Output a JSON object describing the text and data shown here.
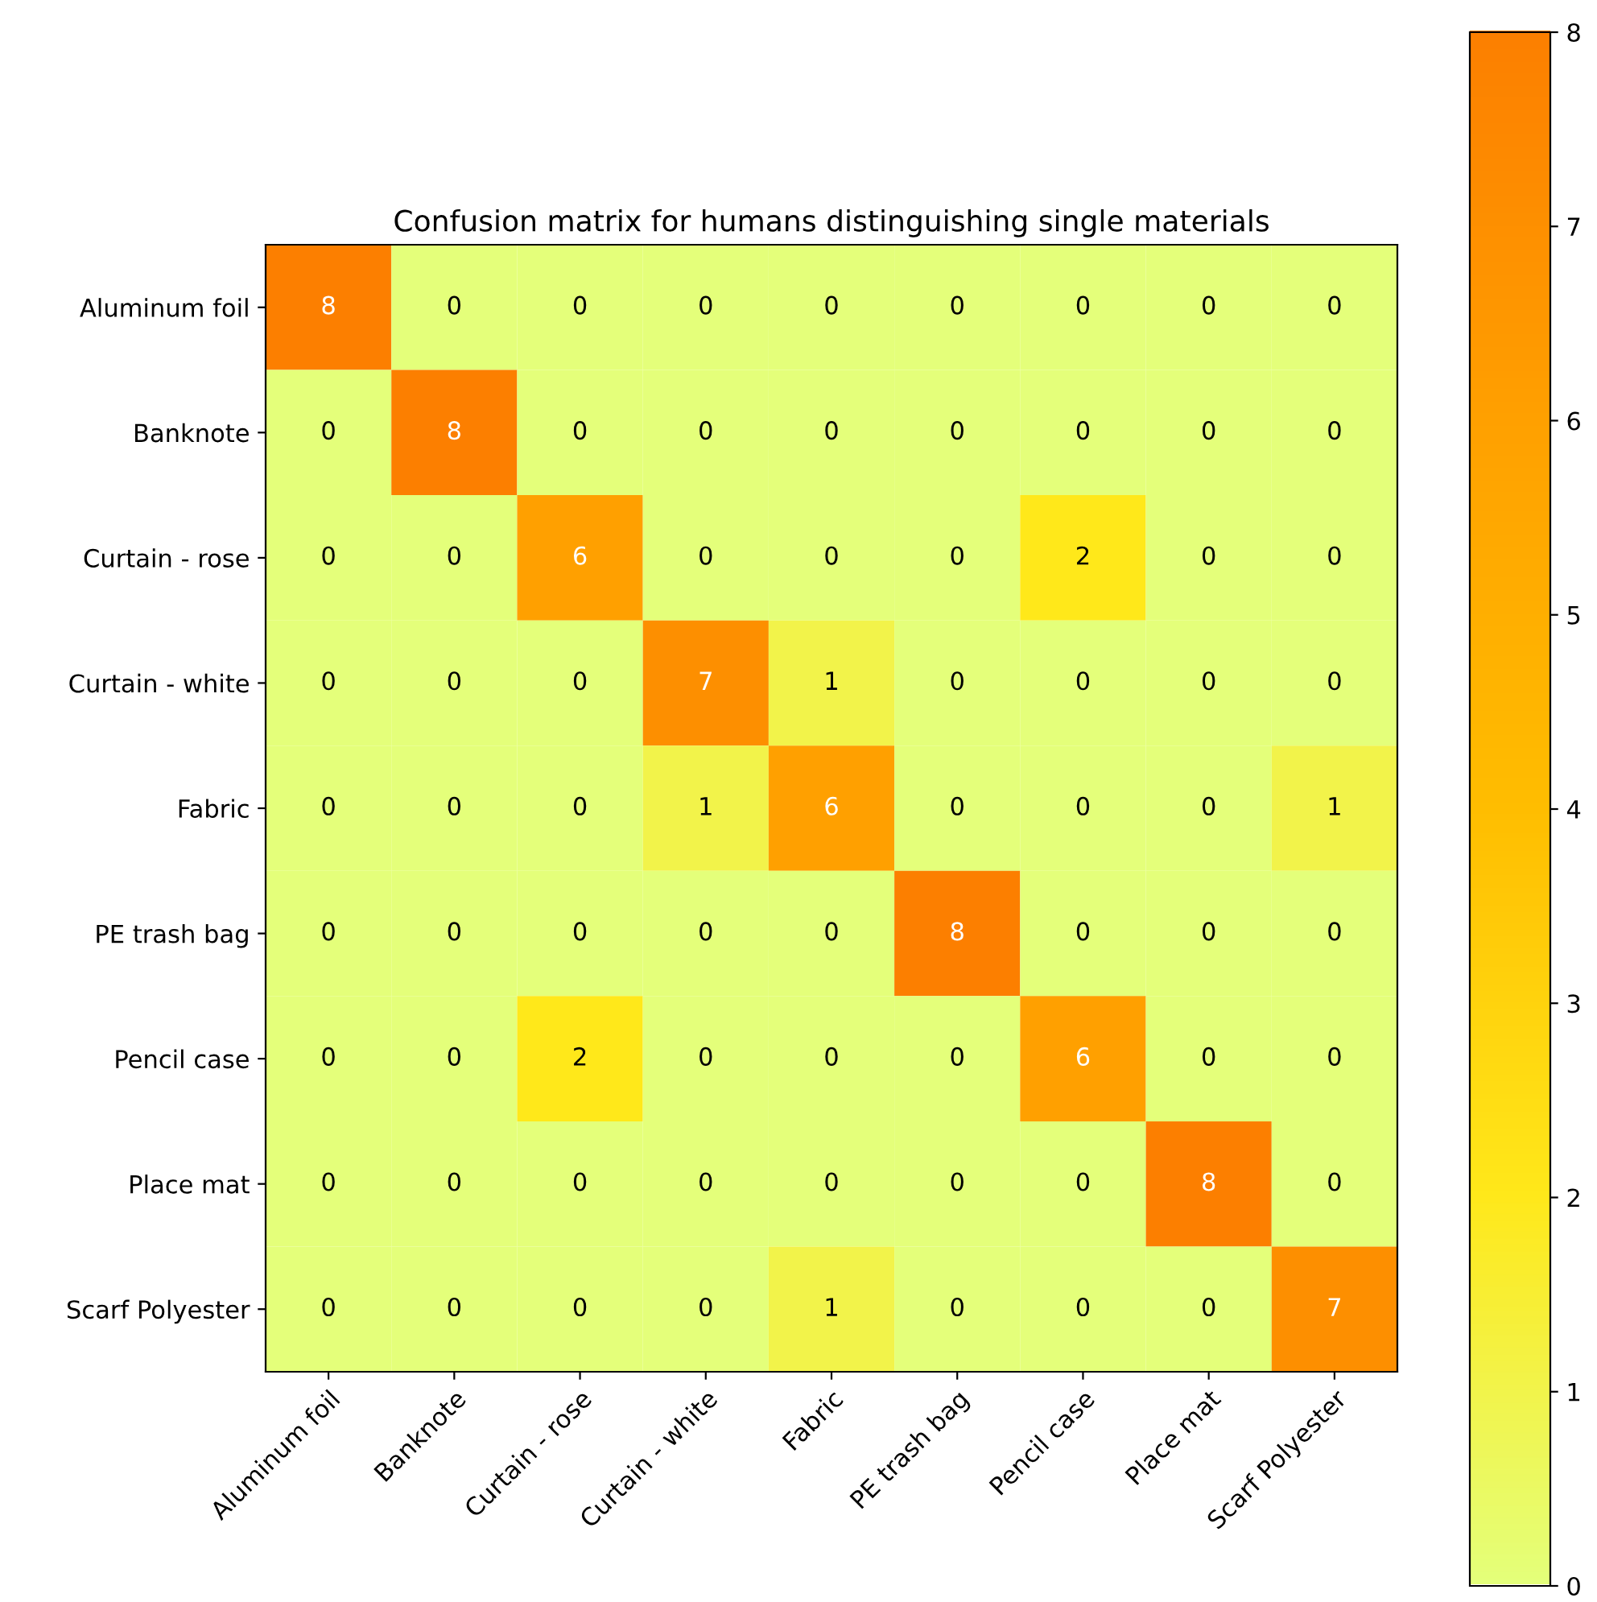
{
  "chart_data": {
    "type": "heatmap",
    "title": "Confusion matrix for humans distinguishing single materials",
    "categories": [
      "Aluminum foil",
      "Banknote",
      "Curtain - rose",
      "Curtain - white",
      "Fabric",
      "PE trash bag",
      "Pencil case",
      "Place mat",
      "Scarf Polyester"
    ],
    "y_categories": [
      "Aluminum foil",
      "Banknote",
      "Curtain - rose",
      "Curtain - white",
      "Fabric",
      "PE trash bag",
      "Pencil case",
      "Place mat",
      "Scarf Polyester"
    ],
    "cells": [
      [
        8,
        0,
        0,
        0,
        0,
        0,
        0,
        0,
        0
      ],
      [
        0,
        8,
        0,
        0,
        0,
        0,
        0,
        0,
        0
      ],
      [
        0,
        0,
        6,
        0,
        0,
        0,
        2,
        0,
        0
      ],
      [
        0,
        0,
        0,
        7,
        1,
        0,
        0,
        0,
        0
      ],
      [
        0,
        0,
        0,
        1,
        6,
        0,
        0,
        0,
        1
      ],
      [
        0,
        0,
        0,
        0,
        0,
        8,
        0,
        0,
        0
      ],
      [
        0,
        0,
        2,
        0,
        0,
        0,
        6,
        0,
        0
      ],
      [
        0,
        0,
        0,
        0,
        0,
        0,
        0,
        8,
        0
      ],
      [
        0,
        0,
        0,
        0,
        1,
        0,
        0,
        0,
        7
      ]
    ],
    "clim": [
      0,
      8
    ],
    "cticks": [
      0,
      1,
      2,
      3,
      4,
      5,
      6,
      7,
      8
    ],
    "data_labels": true
  }
}
